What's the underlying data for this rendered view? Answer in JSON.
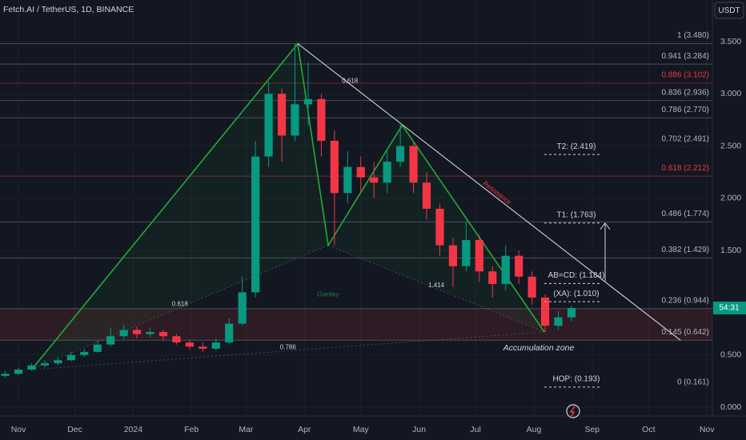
{
  "chart_data": {
    "type": "candlestick",
    "title": "Fetch.AI / TetherUS, 1D, BINANCE",
    "currency": "USDT",
    "countdown": "54:31",
    "up_color": "#089981",
    "down_color": "#f23645",
    "x": [
      -7,
      0,
      7,
      14,
      21,
      28,
      35,
      42,
      49,
      56,
      63,
      70,
      77,
      84,
      91,
      98,
      105,
      112,
      119,
      126,
      133,
      140,
      147,
      154,
      161,
      168,
      175,
      182,
      189,
      196,
      203,
      210,
      217,
      224,
      231,
      238,
      245,
      252,
      259,
      266,
      273,
      280,
      287,
      294
    ],
    "open": [
      0.3,
      0.32,
      0.36,
      0.4,
      0.42,
      0.45,
      0.5,
      0.53,
      0.6,
      0.68,
      0.74,
      0.7,
      0.72,
      0.68,
      0.62,
      0.58,
      0.56,
      0.62,
      0.8,
      1.1,
      2.4,
      3.0,
      2.6,
      2.9,
      2.95,
      2.55,
      2.05,
      2.3,
      2.2,
      2.15,
      2.35,
      2.5,
      2.15,
      1.9,
      1.55,
      1.35,
      1.6,
      1.3,
      1.18,
      1.45,
      1.25,
      1.05,
      0.78,
      0.86
    ],
    "high": [
      0.35,
      0.38,
      0.42,
      0.45,
      0.48,
      0.53,
      0.56,
      0.64,
      0.76,
      0.79,
      0.77,
      0.76,
      0.74,
      0.7,
      0.65,
      0.62,
      0.66,
      0.85,
      1.25,
      2.55,
      3.12,
      3.05,
      3.48,
      3.3,
      3.0,
      2.65,
      2.45,
      2.4,
      2.35,
      2.45,
      2.72,
      2.55,
      2.25,
      1.95,
      1.62,
      1.78,
      1.65,
      1.35,
      1.55,
      1.5,
      1.3,
      1.08,
      0.92,
      0.97
    ],
    "low": [
      0.28,
      0.31,
      0.35,
      0.38,
      0.4,
      0.44,
      0.48,
      0.52,
      0.58,
      0.65,
      0.66,
      0.67,
      0.64,
      0.6,
      0.55,
      0.53,
      0.54,
      0.6,
      0.78,
      1.05,
      2.3,
      2.35,
      2.55,
      2.7,
      2.4,
      1.55,
      1.95,
      2.05,
      2.0,
      2.05,
      2.3,
      2.05,
      1.8,
      1.45,
      1.15,
      1.3,
      1.2,
      1.05,
      1.12,
      1.18,
      0.98,
      0.72,
      0.74,
      0.82
    ],
    "close": [
      0.32,
      0.36,
      0.4,
      0.42,
      0.45,
      0.5,
      0.53,
      0.6,
      0.68,
      0.74,
      0.7,
      0.72,
      0.68,
      0.62,
      0.58,
      0.56,
      0.62,
      0.8,
      1.1,
      2.4,
      3.0,
      2.6,
      2.9,
      2.95,
      2.55,
      2.05,
      2.3,
      2.2,
      2.15,
      2.35,
      2.5,
      2.15,
      1.9,
      1.55,
      1.35,
      1.6,
      1.3,
      1.18,
      1.45,
      1.25,
      1.05,
      0.78,
      0.86,
      0.95
    ],
    "xlim": [
      -9.8,
      368.9
    ],
    "ylim": [
      -0.084,
      3.898
    ],
    "xticks": [
      {
        "value": 0,
        "label": "Nov"
      },
      {
        "value": 30,
        "label": "Dec"
      },
      {
        "value": 61,
        "label": "2024"
      },
      {
        "value": 92,
        "label": "Feb"
      },
      {
        "value": 121,
        "label": "Mar"
      },
      {
        "value": 152,
        "label": "Apr"
      },
      {
        "value": 182,
        "label": "May"
      },
      {
        "value": 213,
        "label": "Jun"
      },
      {
        "value": 243,
        "label": "Jul"
      },
      {
        "value": 274,
        "label": "Aug"
      },
      {
        "value": 305,
        "label": "Sep"
      },
      {
        "value": 335,
        "label": "Oct"
      },
      {
        "value": 366,
        "label": "Nov"
      }
    ],
    "yticks": [
      {
        "value": 3.5,
        "label": "3.500"
      },
      {
        "value": 3.0,
        "label": "3.000"
      },
      {
        "value": 2.5,
        "label": "2.500"
      },
      {
        "value": 2.0,
        "label": "2.000"
      },
      {
        "value": 1.5,
        "label": "1.500"
      },
      {
        "value": 0.5,
        "label": "0.500"
      },
      {
        "value": 0,
        "label": "0.000"
      }
    ],
    "fib_levels": [
      {
        "label": "1 (3.480)",
        "value": 3.48,
        "color": "#b2b5be"
      },
      {
        "label": "0.941 (3.284)",
        "value": 3.284,
        "color": "#b2b5be"
      },
      {
        "label": "0.886 (3.102)",
        "value": 3.102,
        "color": "#f23645"
      },
      {
        "label": "0.836 (2.936)",
        "value": 2.936,
        "color": "#b2b5be"
      },
      {
        "label": "0.786 (2.770)",
        "value": 2.77,
        "color": "#b2b5be"
      },
      {
        "label": "0.702 (2.491)",
        "value": 2.491,
        "color": "#b2b5be"
      },
      {
        "label": "0.618 (2.212)",
        "value": 2.212,
        "color": "#f23645"
      },
      {
        "label": "0.486 (1.774)",
        "value": 1.774,
        "color": "#b2b5be"
      },
      {
        "label": "0.382 (1.429)",
        "value": 1.429,
        "color": "#b2b5be"
      },
      {
        "label": "0.236 (0.944)",
        "value": 0.944,
        "color": "#b2b5be"
      },
      {
        "label": "0.145 (0.642)",
        "value": 0.642,
        "color": "#b2b5be"
      },
      {
        "label": "0 (0.161)",
        "value": 0.161,
        "color": "#b2b5be"
      }
    ],
    "targets": [
      {
        "label": "T2: (2.419)",
        "value": 2.419
      },
      {
        "label": "T1: (1.763)",
        "value": 1.763
      },
      {
        "label": "AB=CD: (1.184)",
        "value": 1.184
      },
      {
        "label": "(XA): (1.010)",
        "value": 1.01
      },
      {
        "label": "HOP: (0.193)",
        "value": 0.193
      }
    ],
    "pattern": {
      "name": "Gartley",
      "color": "#22ab36",
      "x": [
        7,
        148.5,
        164.7,
        204,
        279.6
      ],
      "y": [
        0.36,
        3.48,
        1.55,
        2.7,
        0.72
      ],
      "ratios": [
        "0.618",
        "0.618",
        "1.414",
        "0.786"
      ]
    },
    "resistance": {
      "label": "Resistance",
      "x": [
        148.5,
        352
      ],
      "y": [
        3.48,
        0.64
      ]
    },
    "zone_label": "Accumulation zone"
  }
}
